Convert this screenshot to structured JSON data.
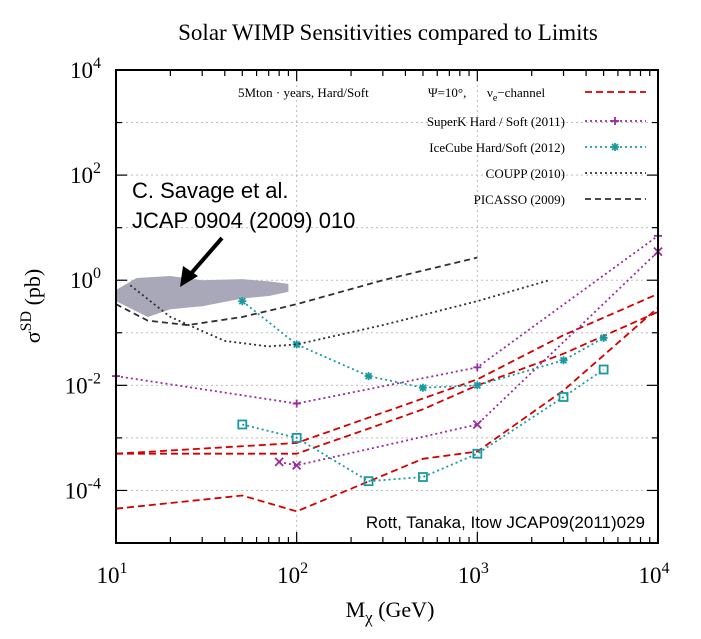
{
  "chart_data": {
    "type": "line",
    "title": "Solar WIMP Sensitivities compared to Limits",
    "xlabel_main": "M",
    "xlabel_sub": "χ",
    "xlabel_unit": " (GeV)",
    "ylabel_main": "σ",
    "ylabel_sup": "SD",
    "ylabel_unit": " (pb)",
    "x_scale": "log",
    "y_scale": "log",
    "xlim": [
      10,
      10000
    ],
    "ylim": [
      1e-05,
      10000
    ],
    "x_ticks": [
      {
        "value": 10,
        "base": "10",
        "exp": "1"
      },
      {
        "value": 100,
        "base": "10",
        "exp": "2"
      },
      {
        "value": 1000,
        "base": "10",
        "exp": "3"
      },
      {
        "value": 10000,
        "base": "10",
        "exp": "4"
      }
    ],
    "y_ticks": [
      {
        "value": 0.0001,
        "base": "10",
        "exp": "-4"
      },
      {
        "value": 0.01,
        "base": "10",
        "exp": "-2"
      },
      {
        "value": 1,
        "base": "10",
        "exp": "0"
      },
      {
        "value": 100,
        "base": "10",
        "exp": "2"
      },
      {
        "value": 10000,
        "base": "10",
        "exp": "4"
      }
    ],
    "legend_position": "top-right",
    "legend_header": {
      "part1": "5Mton · years, Hard/Soft",
      "part2": "Ψ=10°,",
      "part3_main": "ν",
      "part3_sub": "e",
      "part3_rest": "−channel"
    },
    "annotations": {
      "savage_line1": "C. Savage et al.",
      "savage_line2": "JCAP 0904 (2009) 010",
      "credit": "Rott, Tanaka, Itow JCAP09(2011)029"
    },
    "region": {
      "name": "C. Savage et al. allowed region",
      "color": "#a8a8b8",
      "upper": [
        [
          10,
          0.65
        ],
        [
          13,
          1.1
        ],
        [
          20,
          1.2
        ],
        [
          30,
          1.0
        ],
        [
          50,
          1.05
        ],
        [
          70,
          0.95
        ],
        [
          90,
          0.85
        ]
      ],
      "lower": [
        [
          90,
          0.6
        ],
        [
          70,
          0.5
        ],
        [
          50,
          0.45
        ],
        [
          30,
          0.32
        ],
        [
          20,
          0.28
        ],
        [
          15,
          0.2
        ],
        [
          10,
          0.4
        ]
      ]
    },
    "series": [
      {
        "name": "sensitivity_hard",
        "legend": "",
        "color": "#d40000",
        "dash": "7,4",
        "marker": "none",
        "x": [
          10,
          100,
          1000,
          3000,
          10000
        ],
        "y": [
          0.0005,
          0.0008,
          0.013,
          0.09,
          0.55
        ]
      },
      {
        "name": "sensitivity_soft",
        "legend": "",
        "color": "#d40000",
        "dash": "7,4",
        "marker": "none",
        "x": [
          10,
          50,
          100,
          500,
          1000,
          3000,
          10000
        ],
        "y": [
          4.5e-05,
          8e-05,
          4e-05,
          0.0004,
          0.00055,
          0.008,
          0.3
        ]
      },
      {
        "name": "sensitivity_mid",
        "legend": "5Mton · years, Hard/Soft",
        "color": "#d40000",
        "dash": "7,4",
        "marker": "none",
        "x": [
          10,
          100,
          250,
          500,
          1000,
          3000,
          10000
        ],
        "y": [
          0.0005,
          0.0005,
          0.0015,
          0.0035,
          0.01,
          0.04,
          0.25
        ]
      },
      {
        "name": "superk_hard",
        "legend": "SuperK Hard / Soft (2011)",
        "color": "#9a2aa0",
        "dash": "2,3",
        "marker": "plus",
        "x": [
          10,
          100,
          1000,
          10000
        ],
        "y": [
          0.015,
          0.0045,
          0.022,
          7
        ]
      },
      {
        "name": "superk_soft",
        "legend": "",
        "color": "#9a2aa0",
        "dash": "2,3",
        "marker": "cross",
        "x": [
          80,
          100,
          1000,
          10000
        ],
        "y": [
          0.00035,
          0.0003,
          0.0018,
          3.5
        ]
      },
      {
        "name": "icecube_hard",
        "legend": "IceCube Hard/Soft (2012)",
        "color": "#1a9aa0",
        "dash": "2,3",
        "marker": "star",
        "x": [
          50,
          100,
          250,
          500,
          1000,
          3000,
          5000
        ],
        "y": [
          0.4,
          0.06,
          0.015,
          0.009,
          0.01,
          0.03,
          0.08
        ]
      },
      {
        "name": "icecube_soft",
        "legend": "",
        "color": "#1a9aa0",
        "dash": "2,3",
        "marker": "square",
        "x": [
          50,
          100,
          250,
          500,
          1000,
          3000,
          5000
        ],
        "y": [
          0.0018,
          0.001,
          0.00015,
          0.00018,
          0.0005,
          0.006,
          0.02
        ]
      },
      {
        "name": "coupp",
        "legend": "COUPP (2010)",
        "color": "#303030",
        "dash": "2,3",
        "marker": "none",
        "x": [
          12,
          20,
          40,
          70,
          100,
          300,
          1000,
          2500
        ],
        "y": [
          0.8,
          0.2,
          0.07,
          0.055,
          0.06,
          0.14,
          0.4,
          1.0
        ]
      },
      {
        "name": "picasso",
        "legend": "PICASSO (2009)",
        "color": "#303030",
        "dash": "6,4",
        "marker": "none",
        "x": [
          10,
          15,
          25,
          50,
          100,
          300,
          1000
        ],
        "y": [
          0.35,
          0.17,
          0.14,
          0.2,
          0.35,
          1.0,
          2.7
        ]
      }
    ],
    "legend_items": [
      {
        "label": "SuperK Hard / Soft (2011)",
        "color": "#9a2aa0",
        "dash": "2,3",
        "marker": "plus"
      },
      {
        "label": "IceCube Hard/Soft (2012)",
        "color": "#1a9aa0",
        "dash": "2,3",
        "marker": "star"
      },
      {
        "label": "COUPP (2010)",
        "color": "#303030",
        "dash": "2,3",
        "marker": "none"
      },
      {
        "label": "PICASSO (2009)",
        "color": "#303030",
        "dash": "6,4",
        "marker": "none"
      }
    ]
  }
}
